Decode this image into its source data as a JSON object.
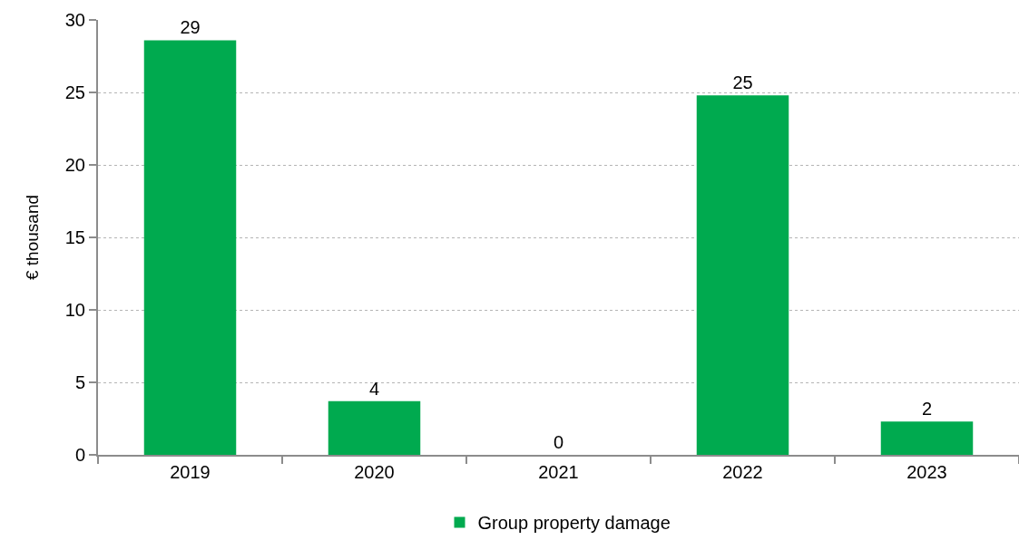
{
  "chart_data": {
    "type": "bar",
    "ylabel": "€ thousand",
    "categories": [
      "2019",
      "2020",
      "2021",
      "2022",
      "2023"
    ],
    "series": [
      {
        "name": "Group property damage",
        "color": "#00aa4f",
        "values": [
          28.6,
          3.7,
          0,
          24.8,
          2.3
        ],
        "value_labels": [
          "29",
          "4",
          "0",
          "25",
          "2"
        ]
      }
    ],
    "ylim": [
      0,
      30
    ],
    "yticks": [
      0,
      5,
      10,
      15,
      20,
      25,
      30
    ],
    "grid": "y",
    "legend": "bottom"
  }
}
